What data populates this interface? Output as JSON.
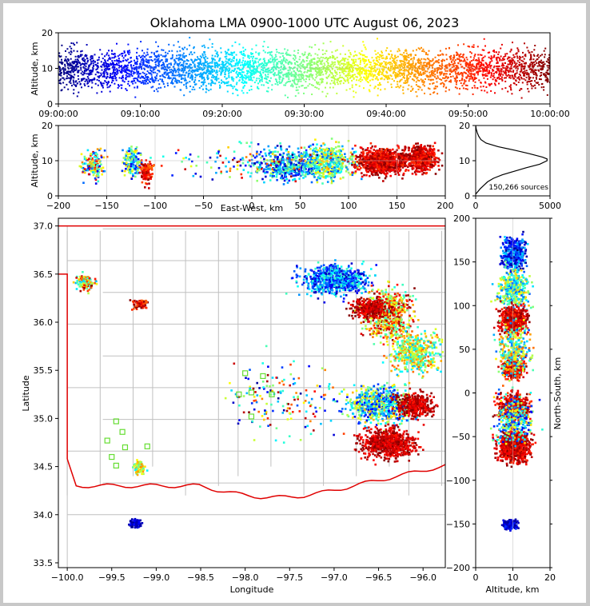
{
  "title": "Oklahoma LMA 0900-1000 UTC August 06, 2023",
  "colors": {
    "cmap": [
      "#00007f",
      "#0000ff",
      "#007fff",
      "#00ffff",
      "#7fff7f",
      "#ffff00",
      "#ff7f00",
      "#ff0000",
      "#7f0000"
    ],
    "state_border": "#e00000",
    "county_lines": "#c0c0c0",
    "stations": "#66dd33"
  },
  "chart_data": [
    {
      "type": "scatter",
      "panel": "time-height",
      "xlabel": "",
      "ylabel": "Altitude, km",
      "xlim": [
        "09:00:00",
        "10:00:00"
      ],
      "ylim": [
        0,
        20
      ],
      "xticks": [
        "09:00:00",
        "09:10:00",
        "09:20:00",
        "09:30:00",
        "09:40:00",
        "09:50:00",
        "10:00:00"
      ],
      "yticks": [
        "0",
        "10",
        "20"
      ],
      "note_color": "time"
    },
    {
      "type": "scatter",
      "panel": "east-west-height",
      "xlabel": "East-West, km",
      "ylabel": "Altitude, km",
      "xlim": [
        -200,
        200
      ],
      "ylim": [
        0,
        20
      ],
      "xticks": [
        "−200",
        "−150",
        "−100",
        "−50",
        "0",
        "50",
        "100",
        "150",
        "200"
      ],
      "yticks": [
        "0",
        "10",
        "20"
      ]
    },
    {
      "type": "line",
      "panel": "altitude-histogram",
      "xlim": [
        0,
        5000
      ],
      "ylim": [
        0,
        20
      ],
      "xticks": [
        "0",
        "5000"
      ],
      "yticks": [
        "0",
        "10",
        "20"
      ],
      "annotation": "150,266 sources",
      "profile": {
        "alt": [
          0.5,
          1,
          2,
          3,
          4,
          5,
          6,
          7,
          8,
          9,
          10,
          10.5,
          11,
          12,
          13,
          14,
          15,
          16,
          17,
          18,
          19,
          20
        ],
        "count": [
          0,
          100,
          300,
          550,
          800,
          1200,
          1800,
          2600,
          3400,
          4300,
          4800,
          4800,
          4500,
          3600,
          2600,
          1500,
          700,
          350,
          200,
          100,
          40,
          0
        ]
      }
    },
    {
      "type": "scatter",
      "panel": "plan-view",
      "xlabel": "Longitude",
      "ylabel": "Latitude",
      "xlim": [
        -100.1,
        -95.75
      ],
      "ylim": [
        33.45,
        37.08
      ],
      "xticks": [
        "−100.0",
        "−99.5",
        "−99.0",
        "−98.5",
        "−98.0",
        "−97.5",
        "−97.0",
        "−96.5",
        "−96.0"
      ],
      "yticks": [
        "33.5",
        "34.0",
        "34.5",
        "35.0",
        "35.5",
        "36.0",
        "36.5",
        "37.0"
      ]
    },
    {
      "type": "scatter",
      "panel": "north-south-height",
      "xlabel": "Altitude, km",
      "ylabel": "North-South, km",
      "xlim": [
        0,
        20
      ],
      "ylim": [
        -200,
        200
      ],
      "xticks": [
        "0",
        "10",
        "20"
      ],
      "yticks": [
        "−200",
        "−150",
        "−100",
        "−50",
        "0",
        "50",
        "100",
        "150",
        "200"
      ]
    }
  ]
}
